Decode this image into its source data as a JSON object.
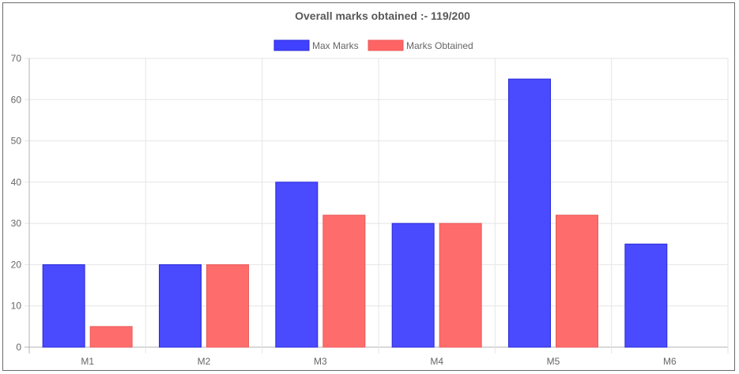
{
  "chart_data": {
    "type": "bar",
    "title": "Overall marks obtained :- 119/200",
    "categories": [
      "M1",
      "M2",
      "M3",
      "M4",
      "M5",
      "M6"
    ],
    "series": [
      {
        "name": "Max Marks",
        "values": [
          20,
          20,
          40,
          30,
          65,
          25
        ],
        "color": "#4040ff",
        "border": "#2a2ad9"
      },
      {
        "name": "Marks Obtained",
        "values": [
          5,
          20,
          32,
          30,
          32,
          0
        ],
        "color": "#ff6464",
        "border": "#e85a5a"
      }
    ],
    "ylim": [
      0,
      70
    ],
    "yticks": [
      0,
      10,
      20,
      30,
      40,
      50,
      60,
      70
    ],
    "grid": true,
    "legend": "top-center"
  }
}
